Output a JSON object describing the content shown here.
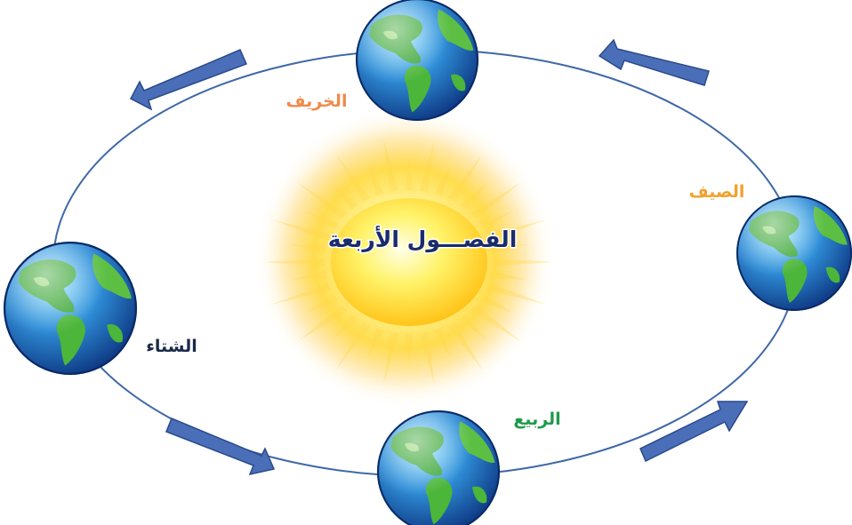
{
  "center_title": "الفصـــول الأربعة",
  "colors": {
    "orbit": "#3f68a8",
    "arrow_fill": "#4a6fb8",
    "arrow_edge": "#2a4a8a",
    "title_text": "#1a2c6b",
    "title_outline": "#ffffff"
  },
  "seasons": [
    {
      "id": "autumn",
      "label": "الخريف",
      "color": "#f08a4b"
    },
    {
      "id": "summer",
      "label": "الصيف",
      "color": "#f2a22c"
    },
    {
      "id": "spring",
      "label": "الربيع",
      "color": "#1f9a4a"
    },
    {
      "id": "winter",
      "label": "الشتاء",
      "color": "#1b2a4a"
    }
  ]
}
